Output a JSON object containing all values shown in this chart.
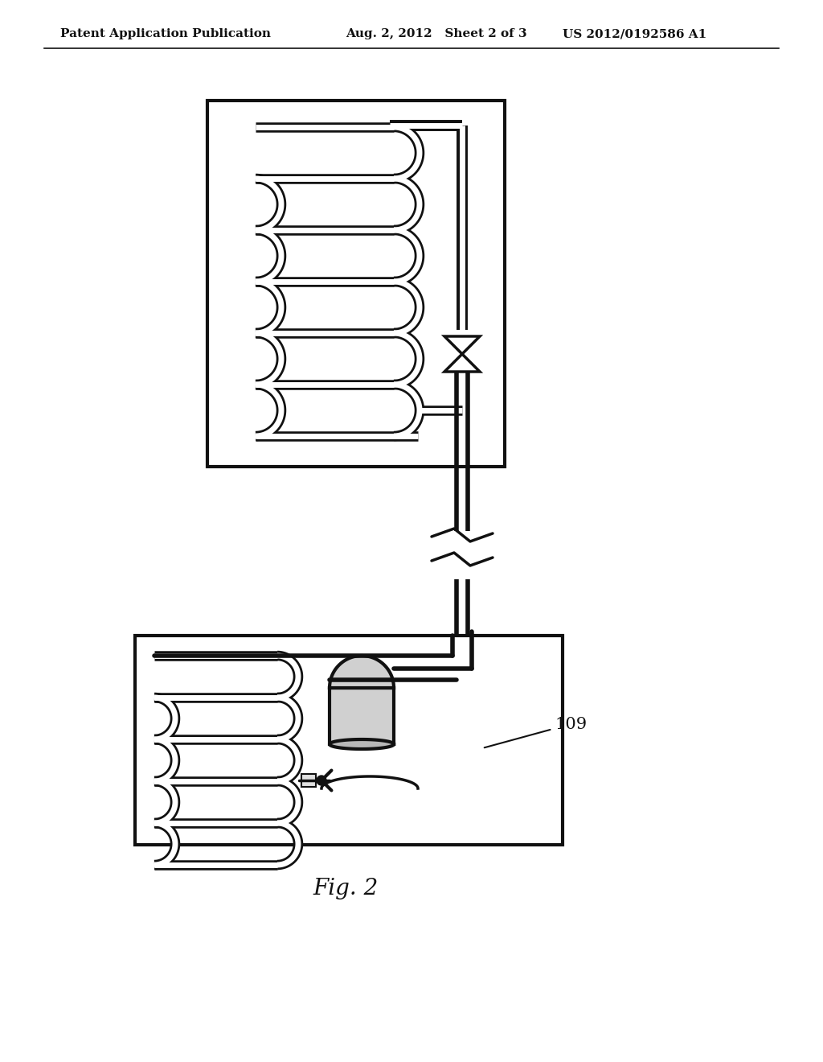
{
  "bg_color": "#ffffff",
  "header_left": "Patent Application Publication",
  "header_mid": "Aug. 2, 2012   Sheet 2 of 3",
  "header_right": "US 2012/0192586 A1",
  "fig_label": "Fig. 2",
  "label_109": "109",
  "line_color": "#111111"
}
